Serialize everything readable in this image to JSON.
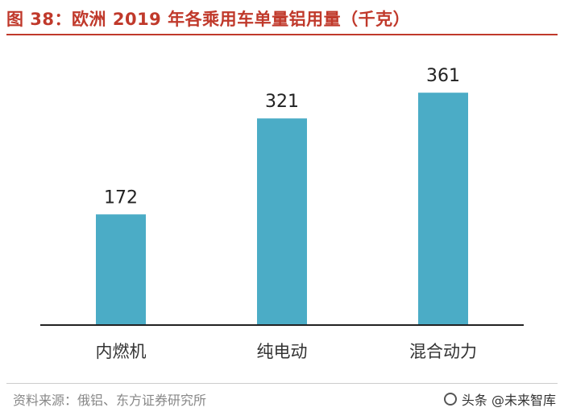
{
  "header": {
    "title": "图 38：欧洲 2019 年各乘用车单量铝用量（千克）"
  },
  "chart_data": {
    "type": "bar",
    "title": "图 38：欧洲 2019 年各乘用车单量铝用量（千克）",
    "categories": [
      "内燃机",
      "纯电动",
      "混合动力"
    ],
    "values": [
      172,
      321,
      361
    ],
    "xlabel": "",
    "ylabel": "",
    "ylim": [
      0,
      400
    ],
    "grid": false,
    "bar_color": "#4bacc6",
    "data_labels": true
  },
  "footer": {
    "source": "资料来源：俄铝、东方证券研究所",
    "watermark": "头条 @未来智库",
    "watermark_icon": "camera-icon"
  }
}
